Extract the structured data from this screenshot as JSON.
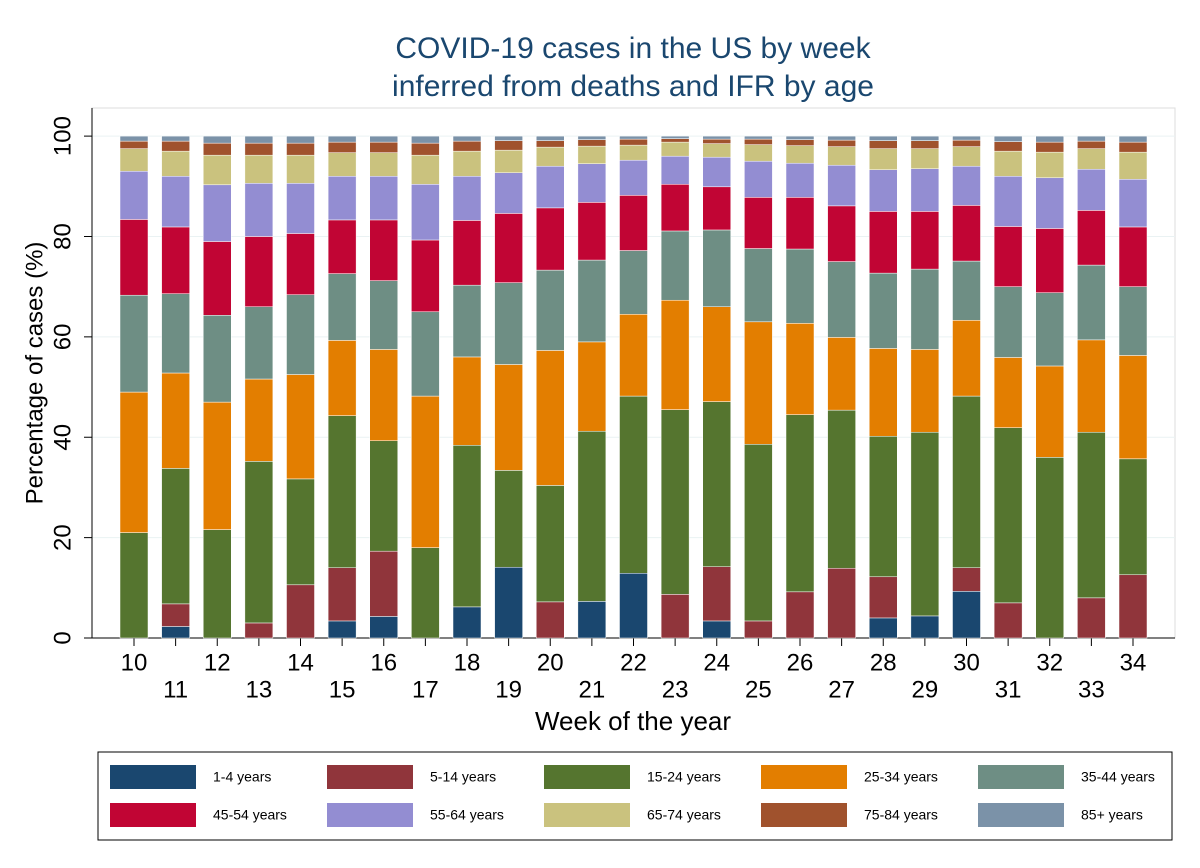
{
  "chart_data": {
    "type": "stacked_bar",
    "title": [
      "COVID-19 cases in the US by week",
      "inferred from deaths and IFR by age"
    ],
    "x_label": "Week of the year",
    "y_label": "Percentage of cases (%)",
    "categories": [
      "10",
      "11",
      "12",
      "13",
      "14",
      "15",
      "16",
      "17",
      "18",
      "19",
      "20",
      "21",
      "22",
      "23",
      "24",
      "25",
      "26",
      "27",
      "28",
      "29",
      "30",
      "31",
      "32",
      "33",
      "34"
    ],
    "ylim": [
      0,
      105.6
    ],
    "yticks": [
      0,
      20,
      40,
      60,
      80,
      100
    ],
    "grid": true,
    "legend": "bottom",
    "series": [
      {
        "name": "1-4 years",
        "color": "#1a476f",
        "values": [
          0,
          2.3,
          0,
          0,
          0,
          3.4,
          4.3,
          0,
          6.2,
          14.1,
          0,
          7.3,
          12.9,
          0,
          3.4,
          0,
          0,
          0,
          4,
          4.4,
          9.3,
          0,
          0,
          0,
          0
        ]
      },
      {
        "name": "5-14 years",
        "color": "#90353b",
        "values": [
          0,
          4.5,
          0,
          3,
          10.6,
          10.6,
          13,
          0,
          0,
          0,
          7.2,
          0,
          0,
          8.7,
          10.8,
          3.4,
          9.2,
          13.9,
          8.2,
          0,
          4.7,
          7,
          0,
          8,
          12.6
        ]
      },
      {
        "name": "15-24 years",
        "color": "#55752f",
        "values": [
          21,
          27,
          21.6,
          32.2,
          21.1,
          30.3,
          22,
          18,
          32.2,
          19.3,
          23.2,
          33.9,
          35.3,
          36.8,
          32.9,
          35.2,
          35.3,
          31.5,
          28,
          36.6,
          34.2,
          34.9,
          36,
          33,
          23.1
        ]
      },
      {
        "name": "25-34 years",
        "color": "#e37e00",
        "values": [
          28,
          19,
          25.4,
          16.4,
          20.8,
          15,
          18.2,
          30.2,
          17.6,
          21.1,
          26.9,
          17.8,
          16.3,
          21.8,
          18.9,
          24.4,
          18.2,
          14.5,
          17.5,
          16.5,
          15.1,
          14,
          18.2,
          18.4,
          20.6
        ]
      },
      {
        "name": "35-44 years",
        "color": "#6e8e84",
        "values": [
          19.3,
          15.8,
          17.3,
          14.4,
          15.9,
          13.3,
          13.7,
          16.8,
          14.3,
          16.3,
          16,
          16.3,
          12.7,
          13.8,
          15.3,
          14.6,
          14.8,
          15.1,
          15,
          16,
          11.8,
          14.1,
          14.6,
          14.9,
          13.7
        ]
      },
      {
        "name": "45-54 years",
        "color": "#c10534",
        "values": [
          15.1,
          13.3,
          14.7,
          14,
          12.2,
          10.7,
          12.1,
          14.3,
          12.9,
          13.8,
          12.4,
          11.5,
          11,
          9.3,
          8.6,
          10.2,
          10.3,
          11.1,
          12.3,
          11.5,
          11.1,
          12,
          12.8,
          10.9,
          11.9
        ]
      },
      {
        "name": "55-64 years",
        "color": "#938dd2",
        "values": [
          9.6,
          10.1,
          11.3,
          10.6,
          10,
          8.7,
          8.7,
          11.1,
          8.8,
          8.1,
          8.3,
          7.7,
          7,
          5.6,
          5.9,
          7.2,
          6.8,
          8.1,
          8.3,
          8.5,
          7.8,
          10,
          10.1,
          8.2,
          9.5
        ]
      },
      {
        "name": "65-74 years",
        "color": "#cac27e",
        "values": [
          4.5,
          5,
          5.9,
          5.6,
          5.6,
          4.7,
          4.7,
          5.8,
          5,
          4.5,
          3.8,
          3.5,
          3,
          2.8,
          2.7,
          3.3,
          3.5,
          3.7,
          4.2,
          4,
          3.9,
          5,
          5.1,
          4.1,
          5.4
        ]
      },
      {
        "name": "75-84 years",
        "color": "#a0522d",
        "values": [
          1.5,
          2,
          2.4,
          2.4,
          2.4,
          2.1,
          2.1,
          2.4,
          2,
          1.9,
          1.3,
          1.3,
          1.2,
          0.7,
          0.9,
          1.1,
          1.2,
          1.3,
          1.6,
          1.6,
          1.3,
          1.9,
          2,
          1.5,
          2
        ]
      },
      {
        "name": "85+ years",
        "color": "#7b92a8",
        "values": [
          1,
          1,
          1.4,
          1.4,
          1.4,
          1.2,
          1.2,
          1.4,
          1,
          0.9,
          0.9,
          0.7,
          0.6,
          0.5,
          0.6,
          0.6,
          0.7,
          0.8,
          0.9,
          0.9,
          0.8,
          1.1,
          1.2,
          1,
          1.2
        ]
      }
    ]
  }
}
